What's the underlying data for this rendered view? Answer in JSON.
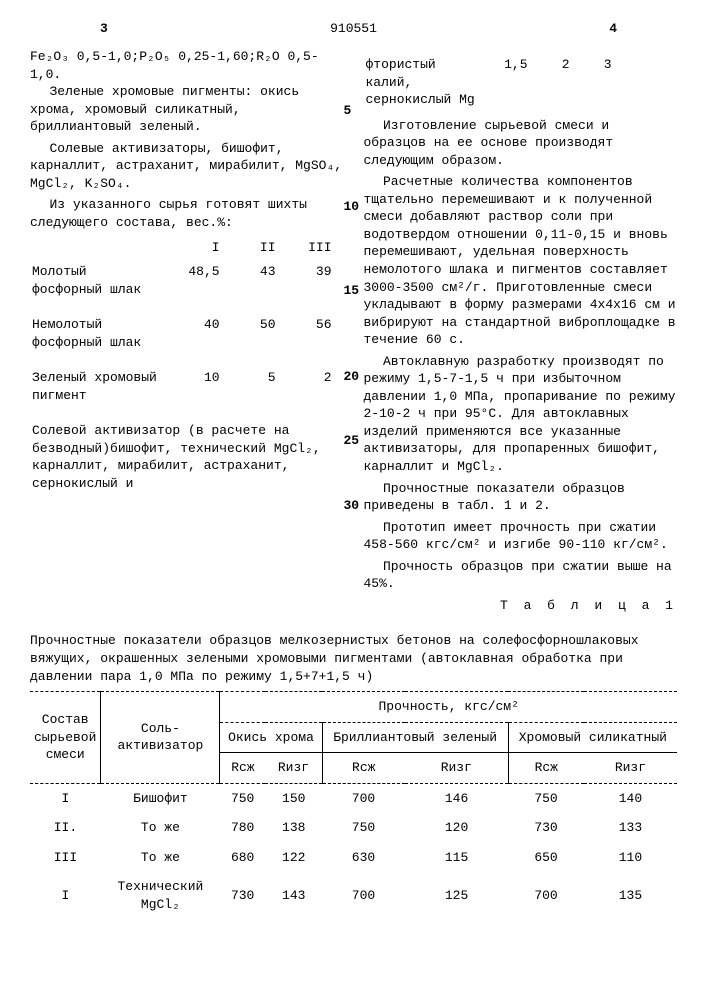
{
  "header": {
    "page_left": "3",
    "doc_no": "910551",
    "page_right": "4"
  },
  "left_col": {
    "formula_line": "Fe₂O₃ 0,5-1,0;P₂O₅  0,25-1,60;R₂O 0,5-1,0.",
    "p1": "Зеленые хромовые пигменты: окись хрома, хромовый силикатный, бриллиантовый зеленый.",
    "p2": "Солевые активизаторы, бишофит, карналлит, астраханит, мирабилит, MgSO₄, MgCl₂, K₂SO₄.",
    "p3": "Из указанного сырья готовят шихты следующего состава, вес.%:",
    "comp_table": {
      "headers": [
        "",
        "I",
        "II",
        "III"
      ],
      "rows": [
        {
          "label": "Молотый фосфорный шлак",
          "v": [
            "48,5",
            "43",
            "39"
          ]
        },
        {
          "label": "Немолотый фосфорный шлак",
          "v": [
            "40",
            "50",
            "56"
          ]
        },
        {
          "label": "Зеленый хромовый пигмент",
          "v": [
            "10",
            "5",
            "2"
          ]
        }
      ]
    },
    "salt_label": "Солевой активизатор (в расчете на безводный)бишофит, технический MgCl₂, карналлит, мирабилит, астраханит, сернокислый и"
  },
  "right_col": {
    "salt_cont": {
      "line1": "фтористый калий, сернокислый Mg",
      "v": [
        "1,5",
        "2",
        "3"
      ]
    },
    "p1": "Изготовление сырьевой смеси и образцов на ее основе производят следующим образом.",
    "p2": "Расчетные количества компонентов тщательно перемешивают и к полученной смеси добавляют раствор соли при водотвердом отношении 0,11-0,15 и вновь перемешивают, удельная поверхность немолотого шлака и пигментов составляет 3000-3500 см²/г. Приготовленные смеси укладывают в форму размерами 4х4х16 см и вибрируют на стандартной виброплощадке в течение 60 с.",
    "p3": "Автоклавную разработку производят по режиму 1,5-7-1,5 ч при избыточном давлении 1,0 МПа, пропаривание по режиму 2-10-2 ч при 95°С. Для автоклавных изделий применяются все указанные активизаторы, для пропаренных бишофит, карналлит и MgCl₂.",
    "p4": "Прочностные показатели образцов приведены в табл. 1 и 2.",
    "p5": "Прототип имеет прочность при сжатии 458-560 кгс/см² и изгибе 90-110 кг/см².",
    "p6": "Прочность образцов при сжатии выше на 45%."
  },
  "line_numbers": [
    "5",
    "10",
    "15",
    "20",
    "25",
    "30"
  ],
  "table1": {
    "caption": "Т а б л и ц а  1",
    "title": "Прочностные показатели образцов мелкозернистых бетонов на солефосфорношлаковых вяжущих, окрашенных зелеными хромовыми пигментами (автоклавная обработка при давлении пара 1,0 МПа по режиму 1,5+7+1,5 ч)",
    "col_group_header": "Прочность, кгс/см²",
    "head_sostav": "Состав сырьевой смеси",
    "head_salt": "Соль-активизатор",
    "pigments": [
      "Окись хрома",
      "Бриллиантовый зеленый",
      "Хромовый силикатный"
    ],
    "subheads": [
      "Rсж",
      "Rизг",
      "Rсж",
      "Rизг",
      "Rсж",
      "Rизг"
    ],
    "rows": [
      {
        "comp": "I",
        "salt": "Бишофит",
        "v": [
          "750",
          "150",
          "700",
          "146",
          "750",
          "140"
        ]
      },
      {
        "comp": "II.",
        "salt": "То же",
        "v": [
          "780",
          "138",
          "750",
          "120",
          "730",
          "133"
        ]
      },
      {
        "comp": "III",
        "salt": "То же",
        "v": [
          "680",
          "122",
          "630",
          "115",
          "650",
          "110"
        ]
      },
      {
        "comp": "I",
        "salt": "Технический MgCl₂",
        "v": [
          "730",
          "143",
          "700",
          "125",
          "700",
          "135"
        ]
      }
    ]
  }
}
